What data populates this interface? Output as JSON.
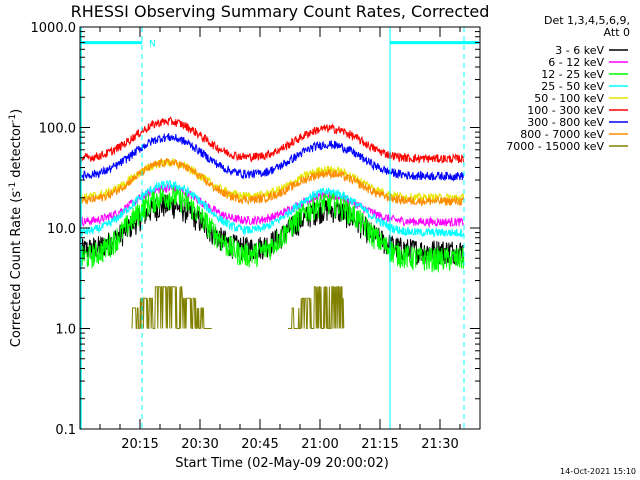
{
  "chart_data": {
    "type": "line",
    "title": "RHESSI Observing Summary Count Rates, Corrected",
    "xlabel": "Start Time (02-May-09 20:00:02)",
    "ylabel_main": "Corrected Count Rate (s",
    "ylabel_sup1": "-1",
    "ylabel_mid": " detector",
    "ylabel_sup2": "-1",
    "ylabel_end": ")",
    "y_scale": "log",
    "ylim": [
      0.1,
      1000
    ],
    "xlim_minutes": [
      0,
      100
    ],
    "x_ticks": [
      {
        "minute": 15,
        "label": "20:15"
      },
      {
        "minute": 30,
        "label": "20:30"
      },
      {
        "minute": 45,
        "label": "20:45"
      },
      {
        "minute": 60,
        "label": "21:00"
      },
      {
        "minute": 75,
        "label": "21:15"
      },
      {
        "minute": 90,
        "label": "21:30"
      }
    ],
    "y_ticks": [
      {
        "value": 1000,
        "label": "1000.0"
      },
      {
        "value": 100,
        "label": "100.0"
      },
      {
        "value": 10,
        "label": "10.0"
      },
      {
        "value": 1,
        "label": "1.0"
      },
      {
        "value": 0.1,
        "label": "0.1"
      }
    ],
    "legend_header": [
      "Det 1,3,4,5,6,9,",
      "Att 0"
    ],
    "legend_placement": "right",
    "series": [
      {
        "name": "3 - 6 keV",
        "color": "#000000",
        "base": 6.0,
        "peak1": 17,
        "peak2": 15.5
      },
      {
        "name": "6 - 12 keV",
        "color": "#ff00ff",
        "base": 11.5,
        "peak1": 25,
        "peak2": 21
      },
      {
        "name": "12 - 25 keV",
        "color": "#00ff00",
        "base": 5.0,
        "peak1": 21,
        "peak2": 18
      },
      {
        "name": "25 - 50 keV",
        "color": "#00ffff",
        "base": 9.0,
        "peak1": 27,
        "peak2": 23
      },
      {
        "name": "50 - 100 keV",
        "color": "#e6e600",
        "base": 20.0,
        "peak1": 45,
        "peak2": 38
      },
      {
        "name": "100 - 300 keV",
        "color": "#ff0000",
        "base": 49.0,
        "peak1": 115,
        "peak2": 98
      },
      {
        "name": "300 - 800 keV",
        "color": "#0000ff",
        "base": 33.0,
        "peak1": 80,
        "peak2": 68
      },
      {
        "name": "800 - 7000 keV",
        "color": "#ff8c00",
        "base": 18.5,
        "peak1": 45,
        "peak2": 35
      },
      {
        "name": "7000 - 15000 keV",
        "color": "#808000",
        "base": 1.0,
        "peak1": 2.6,
        "peak2": 2.0
      }
    ],
    "peak_times_minutes": [
      22,
      62
    ],
    "night_intervals_minutes": [
      [
        -1,
        0.3
      ],
      [
        77.5,
        100
      ]
    ],
    "saa_marker_label": "N",
    "saa_marker_minute": 16.5,
    "dashed_markers_minutes": [
      15.5,
      96
    ],
    "timestamp": "14-Oct-2021 15:10"
  }
}
